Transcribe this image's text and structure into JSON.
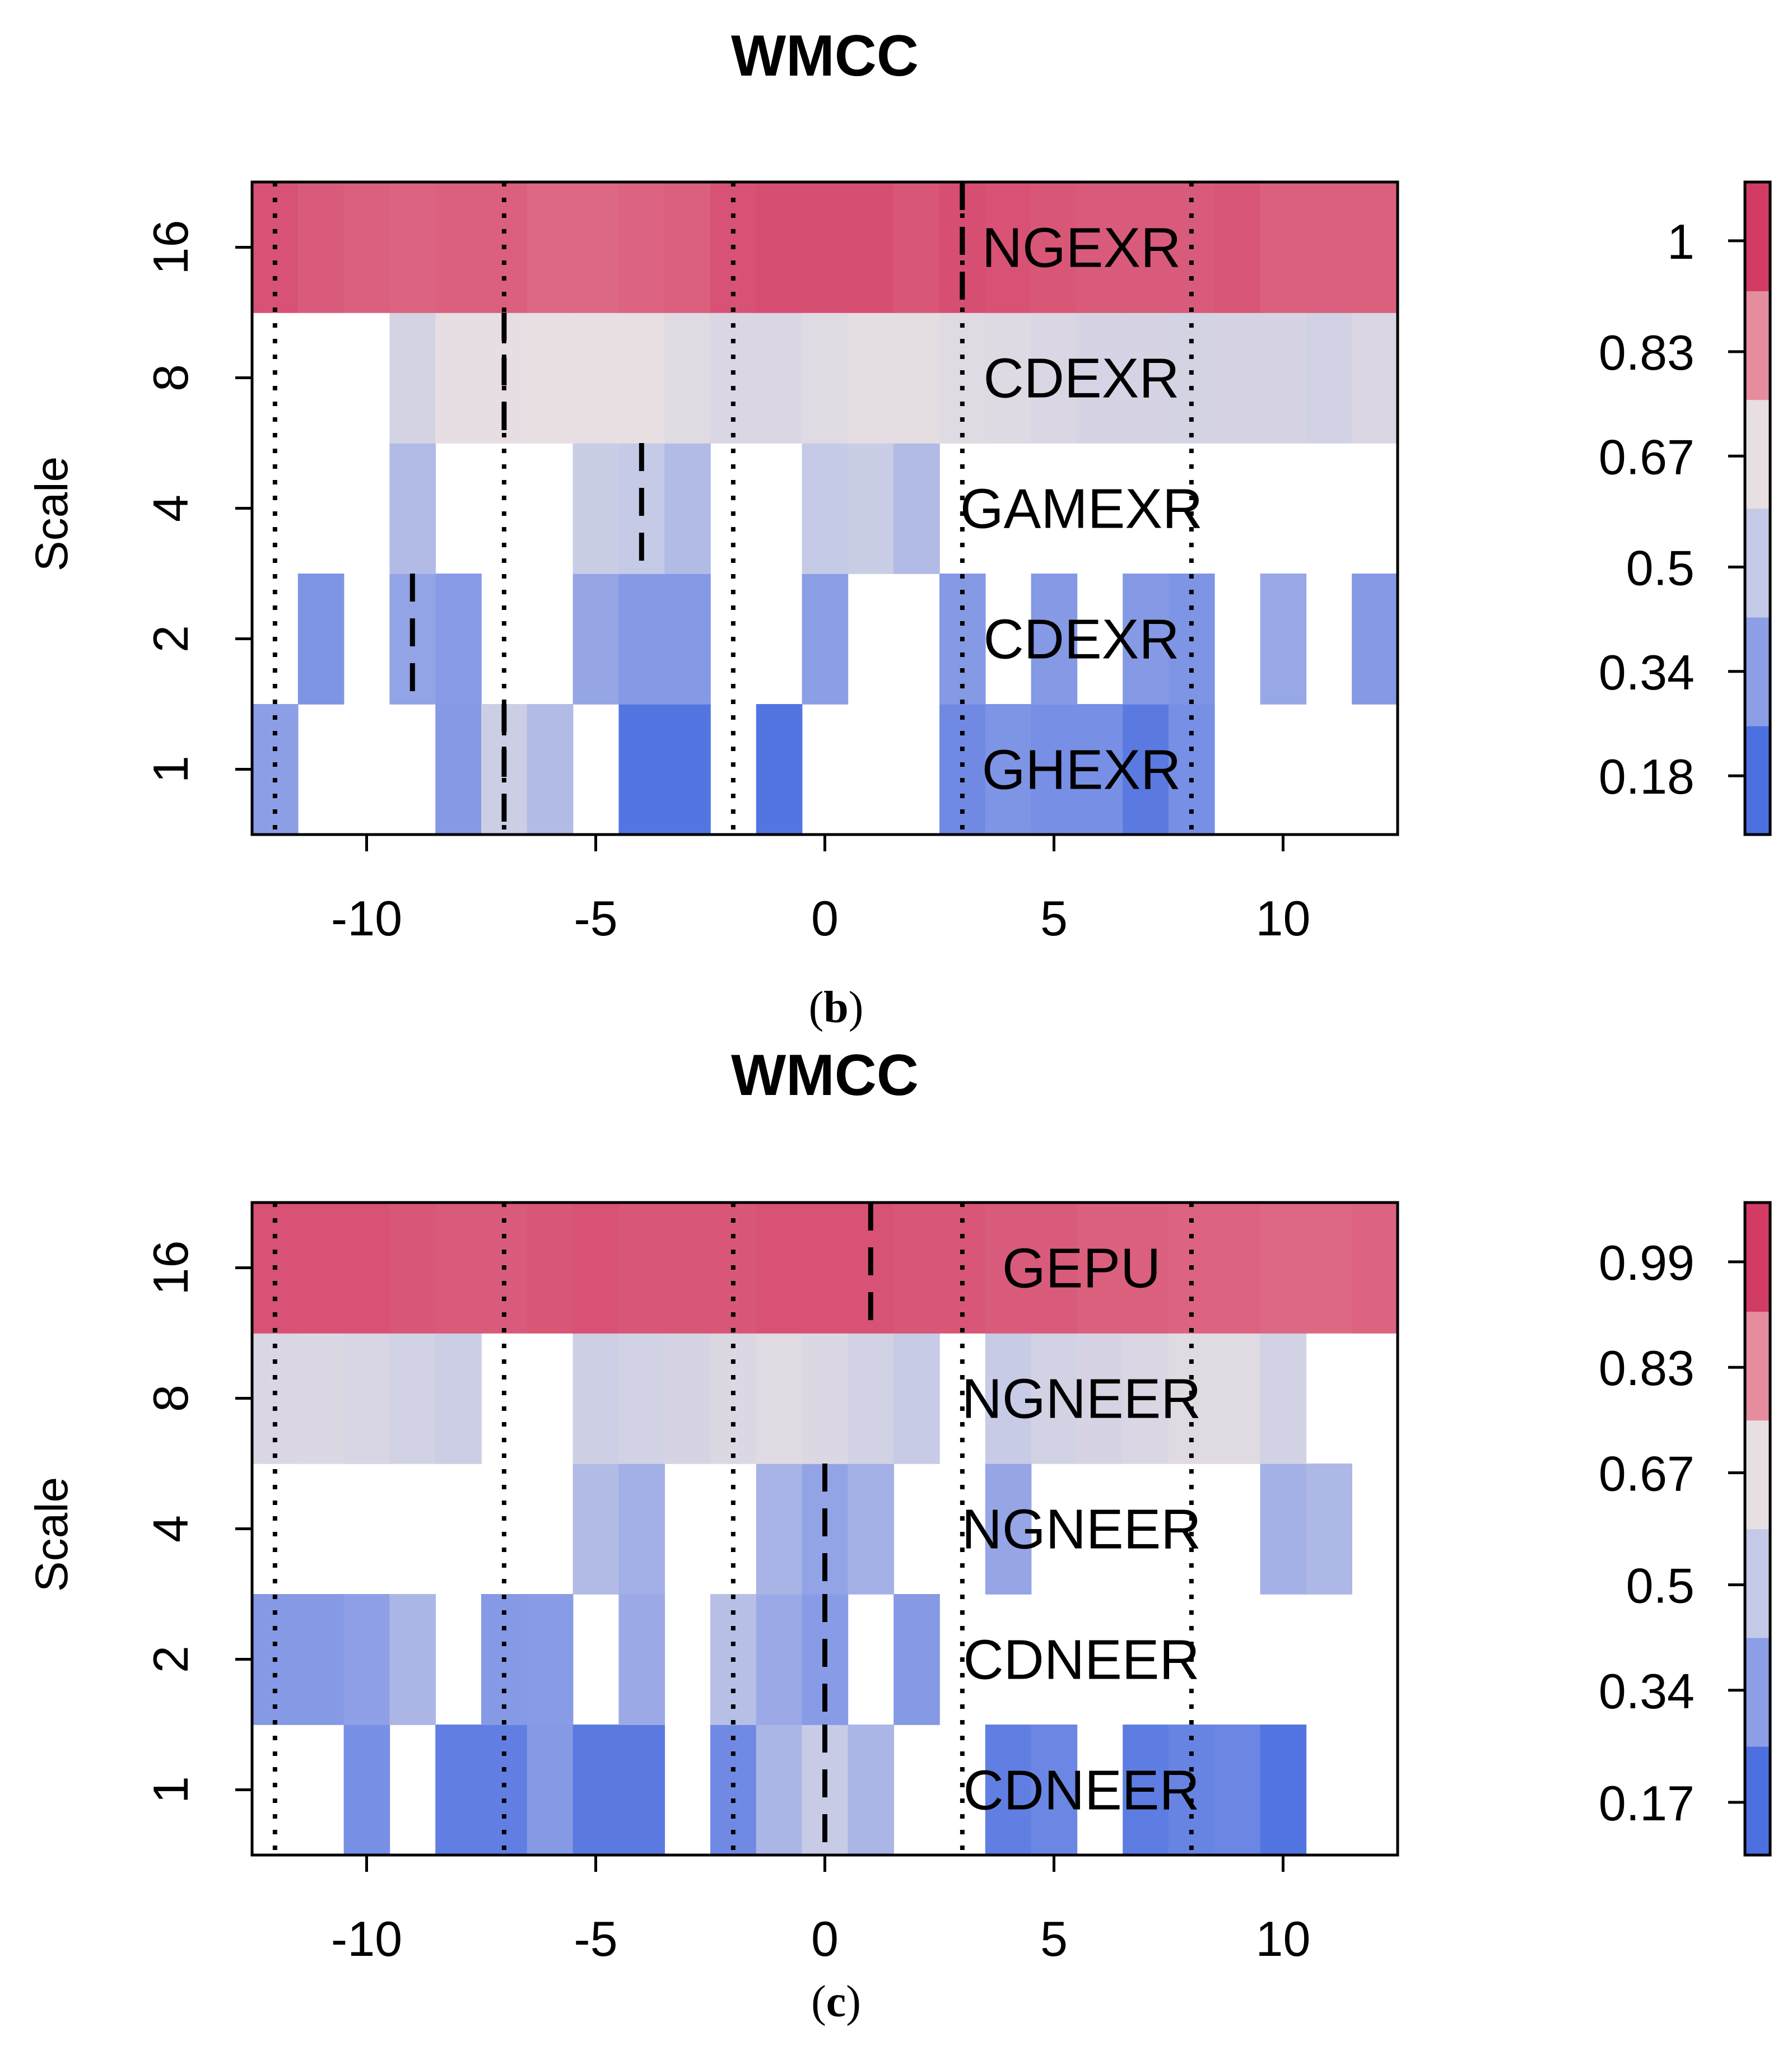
{
  "chart_data": [
    {
      "type": "heatmap",
      "title": "WMCC",
      "ylabel": "Scale",
      "xlabel": "",
      "caption_letter": "b",
      "xlim": [
        -12.5,
        12.5
      ],
      "x_ticks": [
        -10,
        -5,
        0,
        5,
        10
      ],
      "y_scales": [
        1,
        2,
        4,
        8,
        16
      ],
      "y_tick_labels": [
        "1",
        "2",
        "4",
        "8",
        "16"
      ],
      "x_cells": [
        -12,
        -11,
        -10,
        -9,
        -8,
        -7,
        -6,
        -5,
        -4,
        -3,
        -2,
        -1,
        0,
        1,
        2,
        3,
        4,
        5,
        6,
        7,
        8,
        9,
        10,
        11,
        12
      ],
      "values": [
        [
          0.28,
          null,
          null,
          null,
          0.26,
          0.5,
          0.4,
          null,
          0.12,
          0.12,
          null,
          0.12,
          null,
          null,
          null,
          0.2,
          0.24,
          0.22,
          0.22,
          0.14,
          0.22,
          null,
          null,
          null,
          null
        ],
        [
          null,
          0.24,
          null,
          0.3,
          0.27,
          null,
          null,
          0.31,
          0.26,
          0.26,
          null,
          null,
          0.28,
          null,
          null,
          0.26,
          null,
          0.26,
          null,
          0.26,
          0.24,
          null,
          0.32,
          null,
          0.26
        ],
        [
          null,
          null,
          null,
          0.4,
          null,
          null,
          null,
          0.49,
          0.47,
          0.4,
          null,
          null,
          0.47,
          0.49,
          0.4,
          null,
          null,
          null,
          null,
          null,
          null,
          null,
          null,
          null,
          null
        ],
        [
          null,
          null,
          null,
          0.54,
          0.63,
          0.63,
          0.64,
          0.64,
          0.64,
          0.6,
          0.57,
          0.57,
          0.6,
          0.62,
          0.62,
          0.6,
          0.59,
          0.57,
          0.55,
          0.55,
          0.54,
          0.55,
          0.55,
          0.53,
          0.57
        ],
        [
          0.95,
          0.93,
          0.92,
          0.91,
          0.92,
          0.92,
          0.9,
          0.9,
          0.91,
          0.92,
          0.95,
          0.96,
          0.96,
          0.96,
          0.94,
          0.96,
          0.95,
          0.94,
          0.93,
          0.93,
          0.93,
          0.94,
          0.92,
          0.92,
          0.92
        ]
      ],
      "series_labels": [
        "GHEXR",
        "CDEXR",
        "GAMEXR",
        "CDEXR",
        "NGEXR"
      ],
      "label_color": "#000000",
      "dotted_lines_x": [
        -12,
        -7,
        -2,
        3,
        8
      ],
      "dashed_segments": [
        {
          "x": -7,
          "scale": 1
        },
        {
          "x": -9,
          "scale": 2
        },
        {
          "x": -4,
          "scale": 4
        },
        {
          "x": -7,
          "scale": 8
        },
        {
          "x": 3,
          "scale": 16
        }
      ],
      "colorbar": {
        "ticks": [
          0.18,
          0.34,
          0.5,
          0.67,
          0.83,
          1
        ],
        "tick_labels": [
          "0.18",
          "0.34",
          "0.5",
          "0.67",
          "0.83",
          "1"
        ],
        "range": [
          0.09,
          1.09
        ],
        "colors": [
          "#4c70e0",
          "#8c9ee6",
          "#c3c9e6",
          "#e8dfe2",
          "#e58c9e",
          "#d23c64"
        ]
      }
    },
    {
      "type": "heatmap",
      "title": "WMCC",
      "ylabel": "Scale",
      "xlabel": "",
      "caption_letter": "c",
      "xlim": [
        -12.5,
        12.5
      ],
      "x_ticks": [
        -10,
        -5,
        0,
        5,
        10
      ],
      "y_scales": [
        1,
        2,
        4,
        8,
        16
      ],
      "y_tick_labels": [
        "1",
        "2",
        "4",
        "8",
        "16"
      ],
      "x_cells": [
        -12,
        -11,
        -10,
        -9,
        -8,
        -7,
        -6,
        -5,
        -4,
        -3,
        -2,
        -1,
        0,
        1,
        2,
        3,
        4,
        5,
        6,
        7,
        8,
        9,
        10,
        11,
        12
      ],
      "values": [
        [
          null,
          null,
          0.22,
          null,
          0.16,
          0.16,
          0.26,
          0.14,
          0.14,
          null,
          0.2,
          0.38,
          0.48,
          0.38,
          null,
          null,
          0.16,
          0.19,
          null,
          0.15,
          0.18,
          0.19,
          0.12,
          null,
          null
        ],
        [
          0.26,
          0.26,
          0.29,
          0.38,
          null,
          0.26,
          0.27,
          null,
          0.33,
          null,
          0.42,
          0.33,
          0.27,
          null,
          0.26,
          null,
          null,
          null,
          null,
          null,
          null,
          null,
          null,
          null,
          null
        ],
        [
          null,
          null,
          null,
          null,
          null,
          null,
          null,
          0.4,
          0.35,
          null,
          null,
          0.37,
          0.3,
          0.36,
          null,
          null,
          0.31,
          null,
          null,
          null,
          null,
          null,
          0.36,
          0.39,
          null
        ],
        [
          0.57,
          0.58,
          0.56,
          0.53,
          0.5,
          null,
          null,
          0.51,
          0.53,
          0.55,
          0.58,
          0.6,
          0.58,
          0.53,
          0.48,
          null,
          0.48,
          0.53,
          0.55,
          0.57,
          0.6,
          0.6,
          0.53,
          null,
          null
        ],
        [
          0.95,
          0.95,
          0.95,
          0.94,
          0.93,
          0.93,
          0.94,
          0.95,
          0.94,
          0.94,
          0.94,
          0.95,
          0.95,
          0.95,
          0.94,
          0.94,
          0.93,
          0.93,
          0.92,
          0.92,
          0.91,
          0.91,
          0.9,
          0.9,
          0.91
        ]
      ],
      "series_labels": [
        "CDNEER",
        "CDNEER",
        "NGNEER",
        "NGNEER",
        "GEPU"
      ],
      "label_color": "#000000",
      "dotted_lines_x": [
        -12,
        -7,
        -2,
        3,
        8
      ],
      "dashed_segments": [
        {
          "x": 0,
          "scale": 1
        },
        {
          "x": 0,
          "scale": 2
        },
        {
          "x": 0,
          "scale": 4
        },
        {
          "x": 1,
          "scale": 16
        }
      ],
      "colorbar": {
        "ticks": [
          0.17,
          0.34,
          0.5,
          0.67,
          0.83,
          0.99
        ],
        "tick_labels": [
          "0.17",
          "0.34",
          "0.5",
          "0.67",
          "0.83",
          "0.99"
        ],
        "range": [
          0.09,
          1.08
        ],
        "colors": [
          "#4c70e0",
          "#8c9ee6",
          "#c3c9e6",
          "#e8dfe2",
          "#e58c9e",
          "#d23c64"
        ]
      }
    }
  ]
}
